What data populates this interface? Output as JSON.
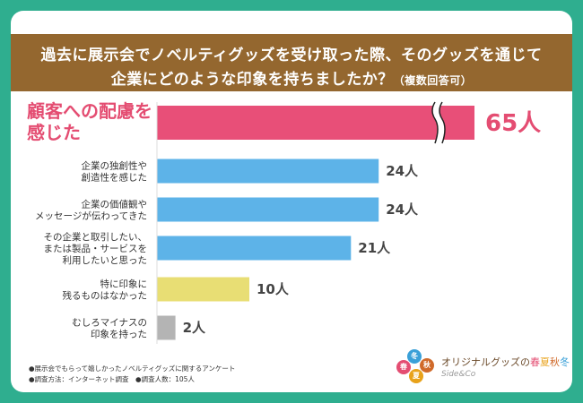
{
  "title": {
    "line1": "過去に展示会でノベルティグッズを受け取った際、そのグッズを通じて",
    "line2": "企業にどのような印象を持ちましたか？",
    "line2_sub": "（複数回答可）"
  },
  "colors": {
    "highlight": "#e84f78",
    "blue": "#5db3e8",
    "yellow": "#e8de74",
    "gray": "#b4b4b4",
    "band": "#94672f",
    "frame": "#2fae8f"
  },
  "chart_data": {
    "type": "bar",
    "orientation": "horizontal",
    "title": "過去に展示会でノベルティグッズを受け取った際、そのグッズを通じて企業にどのような印象を持ちましたか？（複数回答可）",
    "unit": "人",
    "axis_break_on_first_bar": true,
    "bars": [
      {
        "label_lines": [
          "顧客への配慮を",
          "感じた"
        ],
        "value": 65,
        "display": "65人",
        "color_key": "highlight",
        "highlight": true
      },
      {
        "label_lines": [
          "企業の独創性や",
          "創造性を感じた"
        ],
        "value": 24,
        "display": "24人",
        "color_key": "blue",
        "highlight": false
      },
      {
        "label_lines": [
          "企業の価値観や",
          "メッセージが伝わってきた"
        ],
        "value": 24,
        "display": "24人",
        "color_key": "blue",
        "highlight": false
      },
      {
        "label_lines": [
          "その企業と取引したい、",
          "または製品・サービスを",
          "利用したいと思った"
        ],
        "value": 21,
        "display": "21人",
        "color_key": "blue",
        "highlight": false
      },
      {
        "label_lines": [
          "特に印象に",
          "残るものはなかった"
        ],
        "value": 10,
        "display": "10人",
        "color_key": "yellow",
        "highlight": false
      },
      {
        "label_lines": [
          "むしろマイナスの",
          "印象を持った"
        ],
        "value": 2,
        "display": "2人",
        "color_key": "gray",
        "highlight": false
      }
    ]
  },
  "notes": {
    "line1": "●展示会でもらって嬉しかったノベルティグッズに関するアンケート",
    "line2": "●調査方法：インターネット調査　●調査人数：105人"
  },
  "logo": {
    "name_parts": [
      "オリジナルグッズの",
      "春",
      "夏",
      "秋",
      "冬"
    ],
    "sub": "Side&Co",
    "seasons": [
      "冬",
      "秋",
      "春",
      "夏"
    ]
  }
}
